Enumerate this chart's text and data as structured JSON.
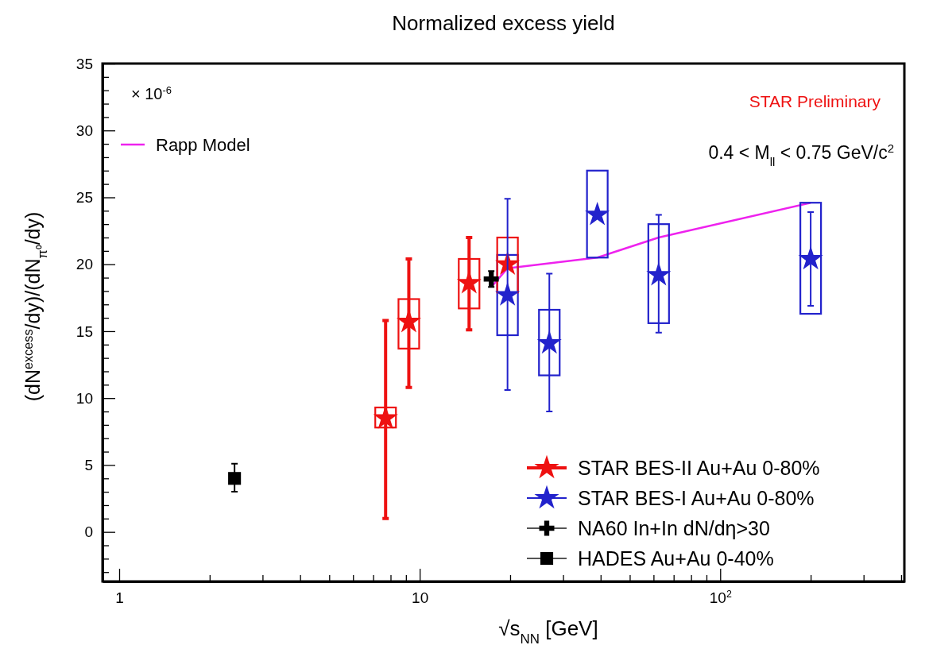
{
  "chart_data": {
    "type": "scatter",
    "title": "Normalized excess yield",
    "xlabel": "√s$_{NN}$ [GeV]",
    "ylabel": "(dN$^{excess}$/dy)/(dN$_{π⁰}$/dy)",
    "log": "x",
    "legend": "bottom right",
    "xlim": [
      0.88,
      410
    ],
    "xticks": [
      1,
      {
        "value": 2,
        "label": null
      },
      {
        "value": 3,
        "label": null
      },
      {
        "value": 4,
        "label": null
      },
      {
        "value": 5,
        "label": null
      },
      {
        "value": 6,
        "label": null
      },
      {
        "value": 7,
        "label": null
      },
      {
        "value": 8,
        "label": null
      },
      {
        "value": 9,
        "label": null
      },
      10,
      {
        "value": 20,
        "label": null
      },
      {
        "value": 30,
        "label": null
      },
      {
        "value": 40,
        "label": null
      },
      {
        "value": 50,
        "label": null
      },
      {
        "value": 60,
        "label": null
      },
      {
        "value": 70,
        "label": null
      },
      {
        "value": 80,
        "label": null
      },
      {
        "value": 90,
        "label": null
      },
      {
        "value": 100,
        "label": "10$^{2}$"
      },
      {
        "value": 200,
        "label": null
      },
      {
        "value": 300,
        "label": null
      },
      {
        "value": 400,
        "label": null
      }
    ],
    "ylim": [
      -3.7,
      35
    ],
    "yticks": [
      {
        "value": -3,
        "label": null
      },
      {
        "value": -2,
        "label": null
      },
      {
        "value": -1,
        "label": null
      },
      0,
      {
        "value": 1,
        "label": null
      },
      {
        "value": 2,
        "label": null
      },
      {
        "value": 3,
        "label": null
      },
      {
        "value": 4,
        "label": null
      },
      5,
      {
        "value": 6,
        "label": null
      },
      {
        "value": 7,
        "label": null
      },
      {
        "value": 8,
        "label": null
      },
      {
        "value": 9,
        "label": null
      },
      10,
      {
        "value": 11,
        "label": null
      },
      {
        "value": 12,
        "label": null
      },
      {
        "value": 13,
        "label": null
      },
      {
        "value": 14,
        "label": null
      },
      15,
      {
        "value": 16,
        "label": null
      },
      {
        "value": 17,
        "label": null
      },
      {
        "value": 18,
        "label": null
      },
      {
        "value": 19,
        "label": null
      },
      20,
      {
        "value": 21,
        "label": null
      },
      {
        "value": 22,
        "label": null
      },
      {
        "value": 23,
        "label": null
      },
      {
        "value": 24,
        "label": null
      },
      25,
      {
        "value": 26,
        "label": null
      },
      {
        "value": 27,
        "label": null
      },
      {
        "value": 28,
        "label": null
      },
      {
        "value": 29,
        "label": null
      },
      30,
      {
        "value": 31,
        "label": null
      },
      {
        "value": 32,
        "label": null
      },
      {
        "value": 33,
        "label": null
      },
      {
        "value": 34,
        "label": null
      },
      35
    ],
    "annotations": [
      "× 10$^{-6}$",
      "STAR Preliminary",
      "0.4 < M$_{ll}$ < 0.75 GeV/c$^{2}$"
    ],
    "series": [
      {
        "type": "line",
        "name": "Rapp Model",
        "color": "#ee22ee",
        "marker": "none",
        "x": [
          17.3,
          19.6,
          39,
          62.4,
          200
        ],
        "values": [
          18.3,
          19.7,
          20.5,
          22.0,
          24.6
        ]
      },
      {
        "type": "bar",
        "color": "#2222cc",
        "x": [
          19.6,
          27,
          39,
          62.4,
          200
        ],
        "base": [
          14.7,
          11.7,
          20.5,
          15.6,
          16.3
        ],
        "values": [
          6.0,
          4.9,
          6.5,
          7.4,
          8.3
        ]
      },
      {
        "type": "bar",
        "color": "#ee1111",
        "x": [
          7.7,
          9.2,
          14.6,
          19.6
        ],
        "base": [
          7.8,
          13.7,
          16.7,
          17.9
        ],
        "values": [
          1.5,
          3.7,
          3.7,
          4.1
        ]
      },
      {
        "name": "STAR BES-II Au+Au 0-80%",
        "color": "#ee1111",
        "marker": "star",
        "x": [
          7.7,
          9.2,
          14.6,
          19.6
        ],
        "values": [
          8.5,
          15.7,
          18.6,
          20.0
        ],
        "errors": [
          [
            1.0,
            15.8
          ],
          [
            10.8,
            20.4
          ],
          [
            15.1,
            22.0
          ],
          null
        ]
      },
      {
        "name": "STAR BES-I Au+Au 0-80%",
        "color": "#2222cc",
        "marker": "star",
        "x": [
          19.6,
          27,
          39,
          62.4,
          200
        ],
        "values": [
          17.7,
          14.1,
          23.7,
          19.2,
          20.4
        ],
        "errors": [
          [
            10.6,
            24.9
          ],
          [
            9.0,
            19.3
          ],
          null,
          [
            14.9,
            23.7
          ],
          [
            16.9,
            23.9
          ]
        ]
      },
      {
        "name": "NA60 In+In dN/dη>30",
        "color": "#000000",
        "marker": "cross",
        "x": [
          17.3
        ],
        "values": [
          18.9
        ],
        "errors": [
          [
            18.3,
            19.5
          ]
        ]
      },
      {
        "name": "HADES Au+Au 0-40%",
        "color": "#000000",
        "marker": "square",
        "x": [
          2.42
        ],
        "values": [
          4.0
        ],
        "errors": [
          [
            3.0,
            5.1
          ]
        ]
      }
    ]
  }
}
